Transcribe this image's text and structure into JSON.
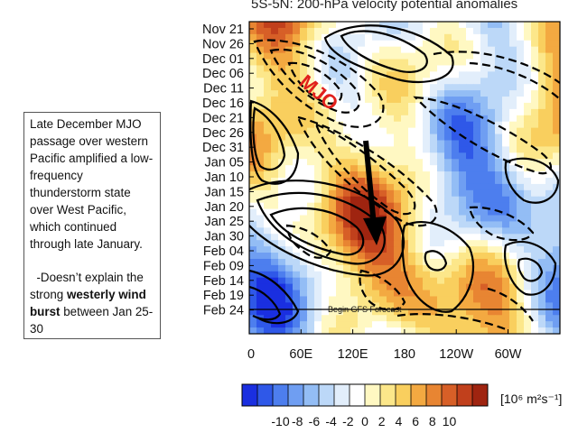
{
  "chart_data": {
    "type": "heatmap",
    "title": "5S-5N: 200-hPa velocity potential anomalies",
    "xlabel": "",
    "ylabel": "",
    "x_ticks": [
      "0",
      "60E",
      "120E",
      "180",
      "120W",
      "60W"
    ],
    "y_ticks": [
      "Nov 21",
      "Nov 26",
      "Dec 01",
      "Dec 06",
      "Dec 11",
      "Dec 16",
      "Dec 21",
      "Dec 26",
      "Dec 31",
      "Jan 05",
      "Jan 10",
      "Jan 15",
      "Jan 20",
      "Jan 25",
      "Jan 30",
      "Feb 04",
      "Feb 09",
      "Feb 14",
      "Feb 19",
      "Feb 24"
    ],
    "colorbar": {
      "ticks": [
        "-10",
        "-8",
        "-6",
        "-4",
        "-2",
        "0",
        "2",
        "4",
        "6",
        "8",
        "10"
      ],
      "unit": "[10⁶ m²s⁻¹]",
      "colors": [
        "#1a2fe0",
        "#2f58e8",
        "#4d7eee",
        "#6f9ef2",
        "#93bdf5",
        "#bcd8f8",
        "#e2eefb",
        "#ffffff",
        "#fff8c2",
        "#fce78a",
        "#f9cf5e",
        "#f3a941",
        "#e88532",
        "#d75f27",
        "#c1401c",
        "#9f2410"
      ]
    },
    "annotations": {
      "mjo_label": "MJO",
      "forecast_label": "Begin GFS Forecast"
    },
    "colors": {
      "mjo_label": "#e0201c",
      "arrow": "#000000",
      "contour": "#000000"
    }
  },
  "note": {
    "para1": "Late December MJO passage over western Pacific amplified a low-frequency thunderstorm state over West Pacific, which continued through late January.",
    "para2_prefix": "-Doesn’t explain the strong ",
    "para2_bold": "westerly wind burst",
    "para2_suffix": " between Jan 25-30"
  }
}
